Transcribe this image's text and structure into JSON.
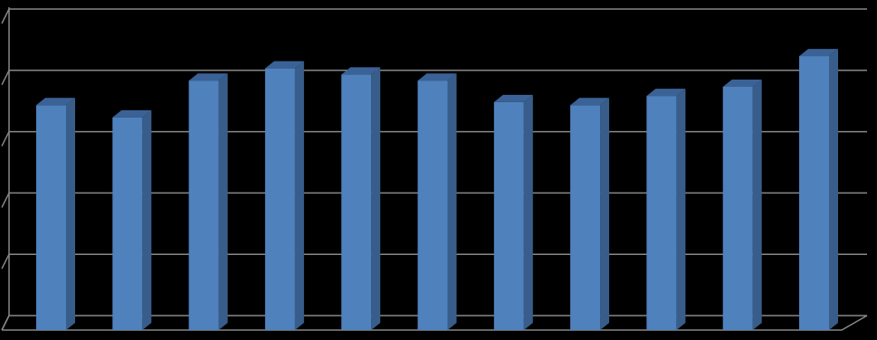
{
  "chart_data": {
    "type": "bar3d",
    "categories": [
      null,
      null,
      null,
      null,
      null,
      null,
      null,
      null,
      null,
      null,
      null
    ],
    "values": [
      3.55,
      3.35,
      3.95,
      4.15,
      4.05,
      3.95,
      3.6,
      3.55,
      3.7,
      3.85,
      4.35
    ],
    "color": "#4f81bd",
    "side_color": "#385d8a",
    "top_color": "#3b6296",
    "ylim": [
      0,
      5
    ],
    "yticks": [
      0,
      1,
      2,
      3,
      4,
      5
    ],
    "grid": true
  }
}
